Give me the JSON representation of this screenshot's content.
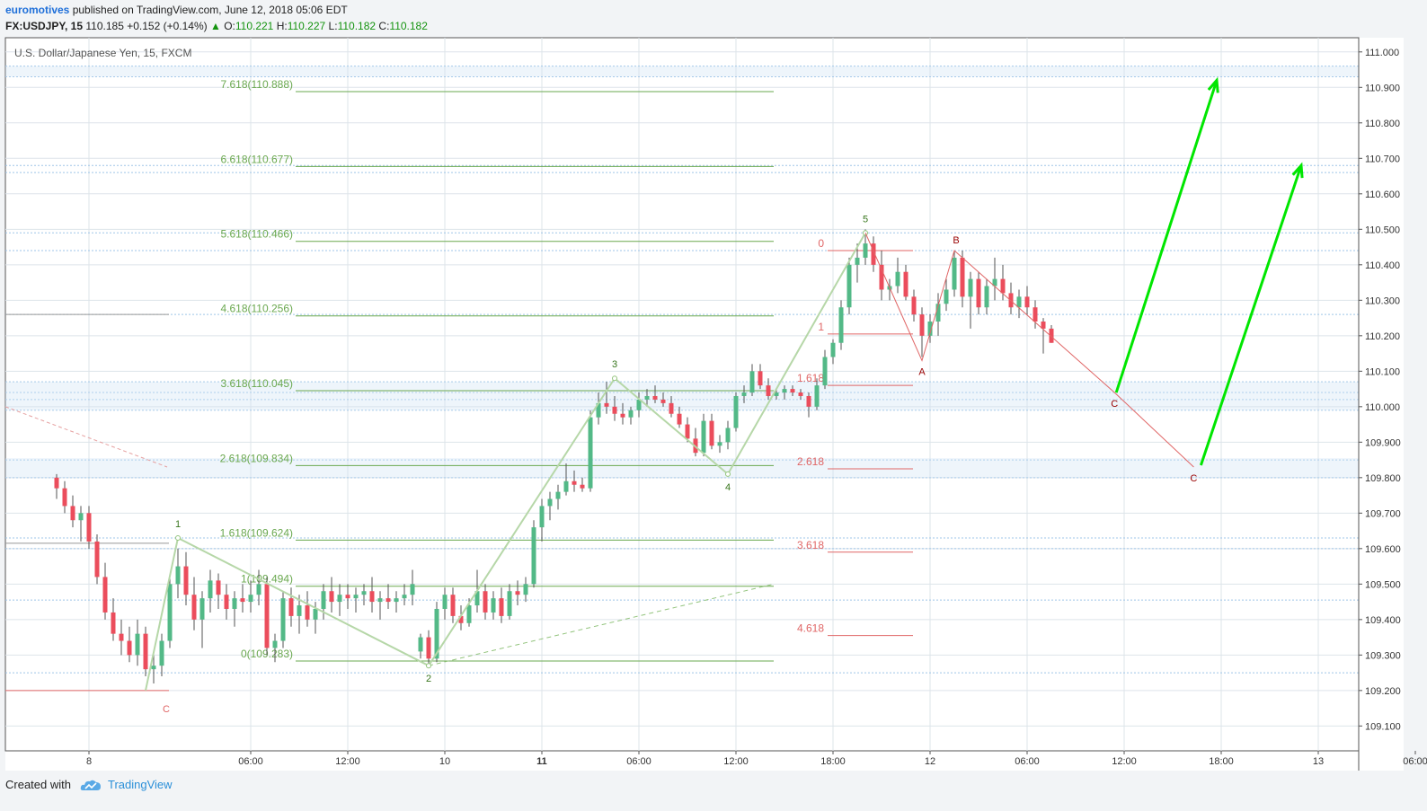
{
  "header": {
    "author": "euromotives",
    "published_text": "published on TradingView.com, June 12, 2018 05:06 EDT",
    "symbol": "FX:USDJPY, 15",
    "last": "110.185",
    "change_prefix": "+0.152 (+0.14%)",
    "o_label": "O:",
    "o_value": "110.221",
    "h_label": "H:",
    "h_value": "110.227",
    "l_label": "L:",
    "l_value": "110.182",
    "c_label": "C:",
    "c_value": "110.182"
  },
  "footer": {
    "created_with": "Created with",
    "brand": "TradingView"
  },
  "colors": {
    "up": "#53b987",
    "down": "#eb4d5c",
    "fib_green": "#6aa84f",
    "fib_green_text": "#6aa84f",
    "fib_red": "#e06666",
    "elliott_line": "#b6d7a8",
    "projection": "#00e600",
    "grid": "#dde4ea",
    "hband": "#9fc5e8",
    "wave_label_green": "#38761d",
    "wave_label_red": "#990000"
  },
  "chart_data": {
    "type": "candlestick",
    "title": "U.S. Dollar/Japanese Yen, 15, FXCM",
    "ylim": [
      109.03,
      111.04
    ],
    "y_ticks": [
      "111.000",
      "110.900",
      "110.800",
      "110.700",
      "110.600",
      "110.500",
      "110.400",
      "110.300",
      "110.200",
      "110.100",
      "110.000",
      "109.900",
      "109.800",
      "109.700",
      "109.600",
      "109.500",
      "109.400",
      "109.300",
      "109.200",
      "109.100"
    ],
    "x_ticks": [
      {
        "t": -4,
        "label": "8",
        "bold": false
      },
      {
        "t": 6,
        "label": "06:00",
        "bold": false
      },
      {
        "t": 12,
        "label": "12:00",
        "bold": false
      },
      {
        "t": 18,
        "label": "10",
        "bold": false
      },
      {
        "t": 24,
        "label": "11",
        "bold": true
      },
      {
        "t": 30,
        "label": "06:00",
        "bold": false
      },
      {
        "t": 36,
        "label": "12:00",
        "bold": false
      },
      {
        "t": 42,
        "label": "18:00",
        "bold": false
      },
      {
        "t": 48,
        "label": "12",
        "bold": false
      },
      {
        "t": 54,
        "label": "06:00",
        "bold": false
      },
      {
        "t": 60,
        "label": "12:00",
        "bold": false
      },
      {
        "t": 66,
        "label": "18:00",
        "bold": false
      },
      {
        "t": 72,
        "label": "13",
        "bold": false
      },
      {
        "t": 78,
        "label": "06:00",
        "bold": false
      }
    ],
    "candles": [
      {
        "t": -6.0,
        "o": 109.8,
        "h": 109.81,
        "l": 109.74,
        "c": 109.77
      },
      {
        "t": -5.5,
        "o": 109.77,
        "h": 109.79,
        "l": 109.7,
        "c": 109.72
      },
      {
        "t": -5.0,
        "o": 109.72,
        "h": 109.75,
        "l": 109.66,
        "c": 109.68
      },
      {
        "t": -4.5,
        "o": 109.68,
        "h": 109.72,
        "l": 109.62,
        "c": 109.7
      },
      {
        "t": -4.0,
        "o": 109.7,
        "h": 109.72,
        "l": 109.6,
        "c": 109.62
      },
      {
        "t": -3.5,
        "o": 109.62,
        "h": 109.64,
        "l": 109.5,
        "c": 109.52
      },
      {
        "t": -3.0,
        "o": 109.52,
        "h": 109.56,
        "l": 109.4,
        "c": 109.42
      },
      {
        "t": -2.5,
        "o": 109.42,
        "h": 109.46,
        "l": 109.34,
        "c": 109.36
      },
      {
        "t": -2.0,
        "o": 109.36,
        "h": 109.4,
        "l": 109.3,
        "c": 109.34
      },
      {
        "t": -1.5,
        "o": 109.34,
        "h": 109.38,
        "l": 109.28,
        "c": 109.3
      },
      {
        "t": -1.0,
        "o": 109.3,
        "h": 109.4,
        "l": 109.27,
        "c": 109.36
      },
      {
        "t": -0.5,
        "o": 109.36,
        "h": 109.38,
        "l": 109.24,
        "c": 109.26
      },
      {
        "t": 0.0,
        "o": 109.26,
        "h": 109.3,
        "l": 109.22,
        "c": 109.27
      },
      {
        "t": 0.5,
        "o": 109.27,
        "h": 109.36,
        "l": 109.24,
        "c": 109.34
      },
      {
        "t": 1.0,
        "o": 109.34,
        "h": 109.52,
        "l": 109.32,
        "c": 109.5
      },
      {
        "t": 1.5,
        "o": 109.5,
        "h": 109.6,
        "l": 109.46,
        "c": 109.55
      },
      {
        "t": 2.0,
        "o": 109.55,
        "h": 109.59,
        "l": 109.44,
        "c": 109.47
      },
      {
        "t": 2.5,
        "o": 109.47,
        "h": 109.52,
        "l": 109.37,
        "c": 109.4
      },
      {
        "t": 3.0,
        "o": 109.4,
        "h": 109.48,
        "l": 109.32,
        "c": 109.46
      },
      {
        "t": 3.5,
        "o": 109.46,
        "h": 109.54,
        "l": 109.42,
        "c": 109.51
      },
      {
        "t": 4.0,
        "o": 109.51,
        "h": 109.53,
        "l": 109.43,
        "c": 109.47
      },
      {
        "t": 4.5,
        "o": 109.47,
        "h": 109.5,
        "l": 109.4,
        "c": 109.43
      },
      {
        "t": 5.0,
        "o": 109.43,
        "h": 109.48,
        "l": 109.38,
        "c": 109.46
      },
      {
        "t": 5.5,
        "o": 109.46,
        "h": 109.5,
        "l": 109.42,
        "c": 109.45
      },
      {
        "t": 6.0,
        "o": 109.45,
        "h": 109.51,
        "l": 109.42,
        "c": 109.47
      },
      {
        "t": 6.5,
        "o": 109.47,
        "h": 109.54,
        "l": 109.44,
        "c": 109.5
      },
      {
        "t": 7.0,
        "o": 109.5,
        "h": 109.52,
        "l": 109.3,
        "c": 109.32
      },
      {
        "t": 7.5,
        "o": 109.32,
        "h": 109.36,
        "l": 109.28,
        "c": 109.34
      },
      {
        "t": 8.0,
        "o": 109.34,
        "h": 109.48,
        "l": 109.32,
        "c": 109.46
      },
      {
        "t": 8.5,
        "o": 109.46,
        "h": 109.49,
        "l": 109.38,
        "c": 109.41
      },
      {
        "t": 9.0,
        "o": 109.41,
        "h": 109.47,
        "l": 109.36,
        "c": 109.44
      },
      {
        "t": 9.5,
        "o": 109.44,
        "h": 109.48,
        "l": 109.38,
        "c": 109.4
      },
      {
        "t": 10.0,
        "o": 109.4,
        "h": 109.45,
        "l": 109.36,
        "c": 109.43
      },
      {
        "t": 10.5,
        "o": 109.43,
        "h": 109.5,
        "l": 109.4,
        "c": 109.48
      },
      {
        "t": 11.0,
        "o": 109.48,
        "h": 109.52,
        "l": 109.42,
        "c": 109.45
      },
      {
        "t": 11.5,
        "o": 109.45,
        "h": 109.5,
        "l": 109.41,
        "c": 109.47
      },
      {
        "t": 12.0,
        "o": 109.47,
        "h": 109.5,
        "l": 109.43,
        "c": 109.46
      },
      {
        "t": 12.5,
        "o": 109.46,
        "h": 109.49,
        "l": 109.42,
        "c": 109.47
      },
      {
        "t": 13.0,
        "o": 109.47,
        "h": 109.5,
        "l": 109.44,
        "c": 109.48
      },
      {
        "t": 13.5,
        "o": 109.48,
        "h": 109.52,
        "l": 109.42,
        "c": 109.45
      },
      {
        "t": 14.0,
        "o": 109.45,
        "h": 109.48,
        "l": 109.4,
        "c": 109.46
      },
      {
        "t": 14.5,
        "o": 109.46,
        "h": 109.5,
        "l": 109.43,
        "c": 109.45
      },
      {
        "t": 15.0,
        "o": 109.45,
        "h": 109.48,
        "l": 109.42,
        "c": 109.46
      },
      {
        "t": 15.5,
        "o": 109.46,
        "h": 109.5,
        "l": 109.44,
        "c": 109.47
      },
      {
        "t": 16.0,
        "o": 109.47,
        "h": 109.54,
        "l": 109.44,
        "c": 109.5
      },
      {
        "t": 16.5,
        "o": 109.31,
        "h": 109.36,
        "l": 109.29,
        "c": 109.35
      },
      {
        "t": 17.0,
        "o": 109.35,
        "h": 109.37,
        "l": 109.27,
        "c": 109.29
      },
      {
        "t": 17.5,
        "o": 109.29,
        "h": 109.45,
        "l": 109.28,
        "c": 109.43
      },
      {
        "t": 18.0,
        "o": 109.43,
        "h": 109.49,
        "l": 109.4,
        "c": 109.47
      },
      {
        "t": 18.5,
        "o": 109.47,
        "h": 109.49,
        "l": 109.39,
        "c": 109.41
      },
      {
        "t": 19.0,
        "o": 109.41,
        "h": 109.44,
        "l": 109.37,
        "c": 109.39
      },
      {
        "t": 19.5,
        "o": 109.39,
        "h": 109.46,
        "l": 109.38,
        "c": 109.44
      },
      {
        "t": 20.0,
        "o": 109.44,
        "h": 109.54,
        "l": 109.42,
        "c": 109.48
      },
      {
        "t": 20.5,
        "o": 109.48,
        "h": 109.5,
        "l": 109.4,
        "c": 109.42
      },
      {
        "t": 21.0,
        "o": 109.42,
        "h": 109.48,
        "l": 109.4,
        "c": 109.46
      },
      {
        "t": 21.5,
        "o": 109.46,
        "h": 109.49,
        "l": 109.39,
        "c": 109.41
      },
      {
        "t": 22.0,
        "o": 109.41,
        "h": 109.5,
        "l": 109.4,
        "c": 109.48
      },
      {
        "t": 22.5,
        "o": 109.48,
        "h": 109.51,
        "l": 109.44,
        "c": 109.47
      },
      {
        "t": 23.0,
        "o": 109.47,
        "h": 109.52,
        "l": 109.45,
        "c": 109.5
      },
      {
        "t": 23.5,
        "o": 109.5,
        "h": 109.68,
        "l": 109.49,
        "c": 109.66
      },
      {
        "t": 24.0,
        "o": 109.66,
        "h": 109.74,
        "l": 109.62,
        "c": 109.72
      },
      {
        "t": 24.5,
        "o": 109.72,
        "h": 109.76,
        "l": 109.68,
        "c": 109.74
      },
      {
        "t": 25.0,
        "o": 109.74,
        "h": 109.78,
        "l": 109.71,
        "c": 109.76
      },
      {
        "t": 25.5,
        "o": 109.76,
        "h": 109.84,
        "l": 109.75,
        "c": 109.79
      },
      {
        "t": 26.0,
        "o": 109.79,
        "h": 109.82,
        "l": 109.76,
        "c": 109.78
      },
      {
        "t": 26.5,
        "o": 109.78,
        "h": 109.8,
        "l": 109.76,
        "c": 109.77
      },
      {
        "t": 27.0,
        "o": 109.77,
        "h": 109.99,
        "l": 109.76,
        "c": 109.97
      },
      {
        "t": 27.5,
        "o": 109.97,
        "h": 110.04,
        "l": 109.95,
        "c": 110.01
      },
      {
        "t": 28.0,
        "o": 110.01,
        "h": 110.07,
        "l": 109.98,
        "c": 110.0
      },
      {
        "t": 28.5,
        "o": 110.0,
        "h": 110.03,
        "l": 109.96,
        "c": 109.98
      },
      {
        "t": 29.0,
        "o": 109.98,
        "h": 110.01,
        "l": 109.95,
        "c": 109.97
      },
      {
        "t": 29.5,
        "o": 109.97,
        "h": 110.0,
        "l": 109.95,
        "c": 109.99
      },
      {
        "t": 30.0,
        "o": 109.99,
        "h": 110.04,
        "l": 109.97,
        "c": 110.02
      },
      {
        "t": 30.5,
        "o": 110.02,
        "h": 110.05,
        "l": 110.0,
        "c": 110.03
      },
      {
        "t": 31.0,
        "o": 110.03,
        "h": 110.06,
        "l": 110.01,
        "c": 110.02
      },
      {
        "t": 31.5,
        "o": 110.02,
        "h": 110.04,
        "l": 110.0,
        "c": 110.01
      },
      {
        "t": 32.0,
        "o": 110.01,
        "h": 110.03,
        "l": 109.97,
        "c": 109.98
      },
      {
        "t": 32.5,
        "o": 109.98,
        "h": 110.0,
        "l": 109.94,
        "c": 109.95
      },
      {
        "t": 33.0,
        "o": 109.95,
        "h": 109.97,
        "l": 109.9,
        "c": 109.91
      },
      {
        "t": 33.5,
        "o": 109.91,
        "h": 109.94,
        "l": 109.86,
        "c": 109.87
      },
      {
        "t": 34.0,
        "o": 109.87,
        "h": 109.98,
        "l": 109.86,
        "c": 109.96
      },
      {
        "t": 34.5,
        "o": 109.96,
        "h": 109.98,
        "l": 109.88,
        "c": 109.89
      },
      {
        "t": 35.0,
        "o": 109.89,
        "h": 109.92,
        "l": 109.87,
        "c": 109.9
      },
      {
        "t": 35.5,
        "o": 109.9,
        "h": 109.96,
        "l": 109.88,
        "c": 109.94
      },
      {
        "t": 36.0,
        "o": 109.94,
        "h": 110.04,
        "l": 109.93,
        "c": 110.03
      },
      {
        "t": 36.5,
        "o": 110.03,
        "h": 110.06,
        "l": 110.01,
        "c": 110.04
      },
      {
        "t": 37.0,
        "o": 110.04,
        "h": 110.12,
        "l": 110.03,
        "c": 110.1
      },
      {
        "t": 37.5,
        "o": 110.1,
        "h": 110.12,
        "l": 110.05,
        "c": 110.06
      },
      {
        "t": 38.0,
        "o": 110.06,
        "h": 110.08,
        "l": 110.02,
        "c": 110.03
      },
      {
        "t": 38.5,
        "o": 110.03,
        "h": 110.05,
        "l": 110.02,
        "c": 110.04
      },
      {
        "t": 39.0,
        "o": 110.04,
        "h": 110.06,
        "l": 110.02,
        "c": 110.05
      },
      {
        "t": 39.5,
        "o": 110.05,
        "h": 110.06,
        "l": 110.03,
        "c": 110.04
      },
      {
        "t": 40.0,
        "o": 110.04,
        "h": 110.05,
        "l": 110.02,
        "c": 110.03
      },
      {
        "t": 40.5,
        "o": 110.03,
        "h": 110.04,
        "l": 109.97,
        "c": 110.0
      },
      {
        "t": 41.0,
        "o": 110.0,
        "h": 110.08,
        "l": 109.99,
        "c": 110.06
      },
      {
        "t": 41.5,
        "o": 110.06,
        "h": 110.16,
        "l": 110.05,
        "c": 110.14
      },
      {
        "t": 42.0,
        "o": 110.14,
        "h": 110.19,
        "l": 110.12,
        "c": 110.18
      },
      {
        "t": 42.5,
        "o": 110.18,
        "h": 110.3,
        "l": 110.16,
        "c": 110.28
      },
      {
        "t": 43.0,
        "o": 110.28,
        "h": 110.42,
        "l": 110.26,
        "c": 110.4
      },
      {
        "t": 43.5,
        "o": 110.4,
        "h": 110.46,
        "l": 110.35,
        "c": 110.42
      },
      {
        "t": 44.0,
        "o": 110.42,
        "h": 110.5,
        "l": 110.4,
        "c": 110.46
      },
      {
        "t": 44.5,
        "o": 110.46,
        "h": 110.48,
        "l": 110.38,
        "c": 110.4
      },
      {
        "t": 45.0,
        "o": 110.4,
        "h": 110.44,
        "l": 110.3,
        "c": 110.33
      },
      {
        "t": 45.5,
        "o": 110.33,
        "h": 110.36,
        "l": 110.3,
        "c": 110.34
      },
      {
        "t": 46.0,
        "o": 110.34,
        "h": 110.42,
        "l": 110.32,
        "c": 110.38
      },
      {
        "t": 46.5,
        "o": 110.38,
        "h": 110.4,
        "l": 110.3,
        "c": 110.31
      },
      {
        "t": 47.0,
        "o": 110.31,
        "h": 110.33,
        "l": 110.24,
        "c": 110.26
      },
      {
        "t": 47.5,
        "o": 110.26,
        "h": 110.28,
        "l": 110.14,
        "c": 110.2
      },
      {
        "t": 48.0,
        "o": 110.2,
        "h": 110.26,
        "l": 110.18,
        "c": 110.24
      },
      {
        "t": 48.5,
        "o": 110.24,
        "h": 110.32,
        "l": 110.2,
        "c": 110.29
      },
      {
        "t": 49.0,
        "o": 110.29,
        "h": 110.36,
        "l": 110.27,
        "c": 110.33
      },
      {
        "t": 49.5,
        "o": 110.33,
        "h": 110.44,
        "l": 110.31,
        "c": 110.42
      },
      {
        "t": 50.0,
        "o": 110.42,
        "h": 110.44,
        "l": 110.28,
        "c": 110.31
      },
      {
        "t": 50.5,
        "o": 110.31,
        "h": 110.38,
        "l": 110.22,
        "c": 110.36
      },
      {
        "t": 51.0,
        "o": 110.36,
        "h": 110.38,
        "l": 110.26,
        "c": 110.28
      },
      {
        "t": 51.5,
        "o": 110.28,
        "h": 110.36,
        "l": 110.26,
        "c": 110.34
      },
      {
        "t": 52.0,
        "o": 110.34,
        "h": 110.42,
        "l": 110.3,
        "c": 110.36
      },
      {
        "t": 52.5,
        "o": 110.36,
        "h": 110.4,
        "l": 110.3,
        "c": 110.32
      },
      {
        "t": 53.0,
        "o": 110.32,
        "h": 110.35,
        "l": 110.26,
        "c": 110.28
      },
      {
        "t": 53.5,
        "o": 110.28,
        "h": 110.33,
        "l": 110.25,
        "c": 110.31
      },
      {
        "t": 54.0,
        "o": 110.31,
        "h": 110.34,
        "l": 110.26,
        "c": 110.28
      },
      {
        "t": 54.5,
        "o": 110.28,
        "h": 110.3,
        "l": 110.22,
        "c": 110.24
      },
      {
        "t": 55.0,
        "o": 110.24,
        "h": 110.25,
        "l": 110.15,
        "c": 110.22
      },
      {
        "t": 55.5,
        "o": 110.22,
        "h": 110.23,
        "l": 110.18,
        "c": 110.18
      }
    ],
    "fib_extension_green": [
      {
        "label": "7.618(110.888)",
        "value": 110.888
      },
      {
        "label": "6.618(110.677)",
        "value": 110.677
      },
      {
        "label": "5.618(110.466)",
        "value": 110.466
      },
      {
        "label": "4.618(110.256)",
        "value": 110.256
      },
      {
        "label": "3.618(110.045)",
        "value": 110.045
      },
      {
        "label": "2.618(109.834)",
        "value": 109.834
      },
      {
        "label": "1.618(109.624)",
        "value": 109.624
      },
      {
        "label": "1(109.494)",
        "value": 109.494
      },
      {
        "label": "0(109.283)",
        "value": 109.283
      }
    ],
    "fib_extension_red": [
      {
        "label": "0",
        "value": 110.44
      },
      {
        "label": "1",
        "value": 110.205
      },
      {
        "label": "1.618",
        "value": 110.06
      },
      {
        "label": "2.618",
        "value": 109.825
      },
      {
        "label": "3.618",
        "value": 109.59
      },
      {
        "label": "4.618",
        "value": 109.355
      }
    ],
    "elliott_waves": [
      {
        "label": "1",
        "t": 1.5,
        "price": 109.63
      },
      {
        "label": "2",
        "t": 17.0,
        "price": 109.27
      },
      {
        "label": "3",
        "t": 28.5,
        "price": 110.08
      },
      {
        "label": "4",
        "t": 35.5,
        "price": 109.81
      },
      {
        "label": "5",
        "t": 44.0,
        "price": 110.49
      }
    ],
    "correction_labels": [
      {
        "label": "A",
        "t": 47.5,
        "price": 110.13
      },
      {
        "label": "B",
        "t": 49.5,
        "price": 110.44
      },
      {
        "label": "C",
        "t": 59.4,
        "price": 110.04
      },
      {
        "label": "C",
        "t": 64.3,
        "price": 109.83
      }
    ],
    "prior_c_label": {
      "label": "C",
      "t": 0.5,
      "price": 109.2
    }
  }
}
